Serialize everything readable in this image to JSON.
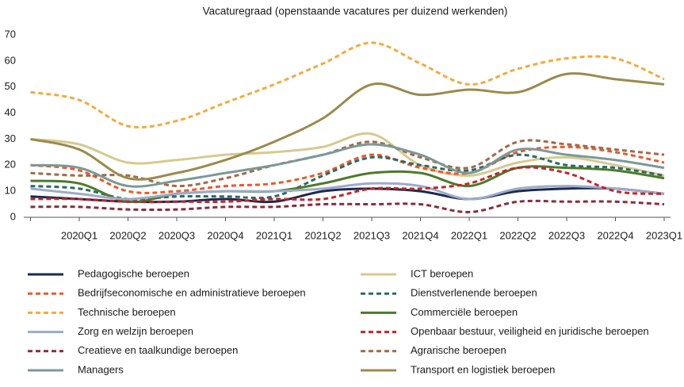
{
  "chart_data": {
    "type": "line",
    "title": "Vacaturegraad (openstaande vacatures per duizend werkenden)",
    "categories": [
      null,
      "2020Q1",
      "2020Q2",
      "2020Q3",
      "2020Q4",
      "2021Q1",
      "2021Q2",
      "2021Q3",
      "2021Q4",
      "2022Q1",
      "2022Q2",
      "2022Q3",
      "2022Q4",
      "2023Q1"
    ],
    "ylim": [
      0,
      70
    ],
    "yticks": [
      0,
      10,
      20,
      30,
      40,
      50,
      60,
      70
    ],
    "smooth": true,
    "series": [
      {
        "name": "Pedagogische beroepen",
        "color": "#1b2a4e",
        "dashed": false,
        "values": [
          8,
          7,
          6,
          6,
          7,
          6,
          10,
          11,
          10,
          7,
          10,
          11,
          11,
          9
        ]
      },
      {
        "name": "ICT beroepen",
        "color": "#d6ca8e",
        "dashed": false,
        "values": [
          30,
          28,
          21,
          22,
          24,
          25,
          27,
          32,
          20,
          16,
          21,
          23,
          20,
          16
        ]
      },
      {
        "name": "Bedrijfseconomische en administratieve beroepen",
        "color": "#e95a2b",
        "dashed": true,
        "values": [
          20,
          18,
          10,
          10,
          12,
          13,
          17,
          24,
          19,
          17,
          25,
          27,
          25,
          21
        ]
      },
      {
        "name": "Dienstverlenende beroepen",
        "color": "#2b6a66",
        "dashed": true,
        "values": [
          12,
          11,
          7,
          8,
          8,
          8,
          16,
          23,
          20,
          18,
          24,
          20,
          19,
          16
        ]
      },
      {
        "name": "Technische beroepen",
        "color": "#f6a93b",
        "dashed": true,
        "values": [
          48,
          45,
          35,
          37,
          44,
          51,
          59,
          67,
          59,
          51,
          57,
          61,
          61,
          53
        ]
      },
      {
        "name": "Commerciële beroepen",
        "color": "#4d7a2b",
        "dashed": false,
        "values": [
          14,
          13,
          6,
          9,
          10,
          10,
          13,
          17,
          17,
          12,
          19,
          19,
          18,
          15
        ]
      },
      {
        "name": "Zorg en welzijn beroepen",
        "color": "#9cabc9",
        "dashed": false,
        "values": [
          11,
          9,
          7,
          9,
          10,
          10,
          11,
          13,
          12,
          7,
          11,
          12,
          11,
          9
        ]
      },
      {
        "name": "Openbaar bestuur, veiligheid en juridische beroepen",
        "color": "#c3262c",
        "dashed": true,
        "values": [
          7,
          7,
          6,
          6,
          6,
          7,
          7,
          11,
          11,
          13,
          19,
          17,
          10,
          9
        ]
      },
      {
        "name": "Creatieve en taalkundige beroepen",
        "color": "#8a2d3c",
        "dashed": true,
        "values": [
          4,
          4,
          3,
          3,
          4,
          4,
          5,
          5,
          5,
          2,
          6,
          6,
          6,
          5
        ]
      },
      {
        "name": "Agrarische beroepen",
        "color": "#a3694a",
        "dashed": true,
        "values": [
          17,
          16,
          16,
          12,
          15,
          20,
          24,
          29,
          23,
          19,
          29,
          28,
          26,
          24
        ]
      },
      {
        "name": "Managers",
        "color": "#7b9a97",
        "dashed": false,
        "values": [
          20,
          19,
          12,
          14,
          17,
          20,
          24,
          28,
          24,
          17,
          26,
          24,
          22,
          19
        ]
      },
      {
        "name": "Transport en logistiek beroepen",
        "color": "#9b8a4b",
        "dashed": false,
        "values": [
          30,
          26,
          15,
          17,
          22,
          29,
          38,
          51,
          47,
          49,
          48,
          55,
          53,
          51
        ]
      }
    ]
  }
}
